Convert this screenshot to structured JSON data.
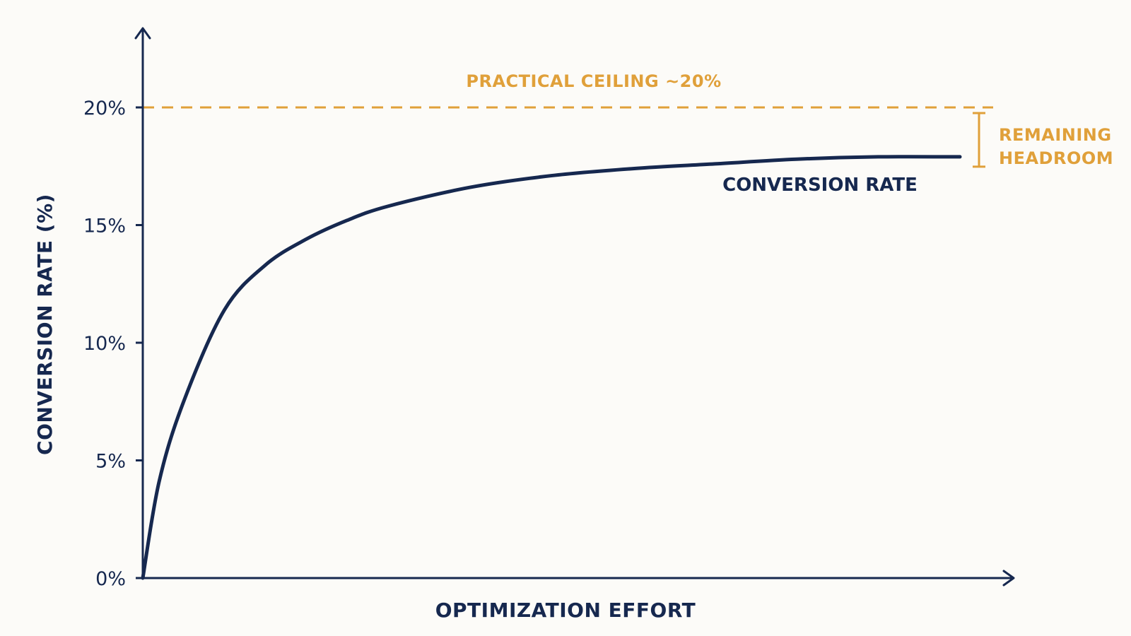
{
  "chart_data": {
    "type": "line",
    "title": "",
    "xlabel": "OPTIMIZATION EFFORT",
    "ylabel": "CONVERSION RATE (%)",
    "ylim": [
      0,
      20
    ],
    "yticks": [
      {
        "value": 0,
        "label": "0%"
      },
      {
        "value": 5,
        "label": "5%"
      },
      {
        "value": 10,
        "label": "10%"
      },
      {
        "value": 15,
        "label": "15%"
      },
      {
        "value": 20,
        "label": "20%"
      }
    ],
    "grid": false,
    "legend": "none",
    "series": [
      {
        "name": "CONVERSION RATE",
        "color": "#16284f",
        "x": [
          0,
          0.02,
          0.05,
          0.1,
          0.15,
          0.2,
          0.25,
          0.3,
          0.4,
          0.5,
          0.6,
          0.7,
          0.8,
          0.9,
          1.0
        ],
        "y": [
          0,
          4.1,
          7.5,
          11.4,
          13.3,
          14.4,
          15.2,
          15.8,
          16.6,
          17.1,
          17.4,
          17.6,
          17.8,
          17.9,
          17.9
        ]
      }
    ],
    "annotations": {
      "ceiling": {
        "value": 20,
        "label": "PRACTICAL CEILING ~20%",
        "color": "#e0a03a"
      },
      "headroom": {
        "from": 17.9,
        "to": 20,
        "label_line1": "REMAINING",
        "label_line2": "HEADROOM",
        "color": "#e0a03a"
      }
    }
  }
}
